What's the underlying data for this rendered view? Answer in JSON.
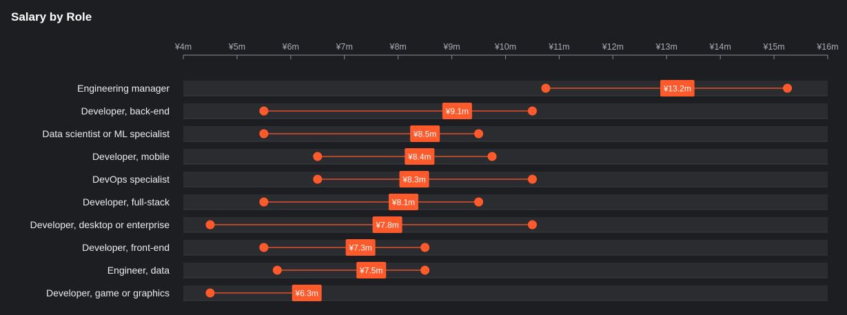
{
  "page": {
    "title": "Salary by Role"
  },
  "colors": {
    "background": "#1c1e21",
    "row_band": "#2a2c2f",
    "axis": "#8a8e94",
    "accent": "#ff5a2b",
    "text": "#ececec"
  },
  "chart_data": {
    "type": "range-dot",
    "title": "Salary by Role",
    "xlabel": "",
    "ylabel": "",
    "xlim": [
      4,
      16
    ],
    "x_ticks": [
      4,
      5,
      6,
      7,
      8,
      9,
      10,
      11,
      12,
      13,
      14,
      15,
      16
    ],
    "tick_labels": [
      "¥4m",
      "¥5m",
      "¥6m",
      "¥7m",
      "¥8m",
      "¥9m",
      "¥10m",
      "¥11m",
      "¥12m",
      "¥13m",
      "¥14m",
      "¥15m",
      "¥16m"
    ],
    "rows": [
      {
        "role": "Engineering manager",
        "min": 10.75,
        "max": 15.25,
        "median": 13.2,
        "median_label": "¥13.2m"
      },
      {
        "role": "Developer, back-end",
        "min": 5.5,
        "max": 10.5,
        "median": 9.1,
        "median_label": "¥9.1m"
      },
      {
        "role": "Data scientist or ML specialist",
        "min": 5.5,
        "max": 9.5,
        "median": 8.5,
        "median_label": "¥8.5m"
      },
      {
        "role": "Developer, mobile",
        "min": 6.5,
        "max": 9.75,
        "median": 8.4,
        "median_label": "¥8.4m"
      },
      {
        "role": "DevOps specialist",
        "min": 6.5,
        "max": 10.5,
        "median": 8.3,
        "median_label": "¥8.3m"
      },
      {
        "role": "Developer, full-stack",
        "min": 5.5,
        "max": 9.5,
        "median": 8.1,
        "median_label": "¥8.1m"
      },
      {
        "role": "Developer, desktop or enterprise",
        "min": 4.5,
        "max": 10.5,
        "median": 7.8,
        "median_label": "¥7.8m"
      },
      {
        "role": "Developer, front-end",
        "min": 5.5,
        "max": 8.5,
        "median": 7.3,
        "median_label": "¥7.3m"
      },
      {
        "role": "Engineer, data",
        "min": 5.75,
        "max": 8.5,
        "median": 7.5,
        "median_label": "¥7.5m"
      },
      {
        "role": "Developer, game or graphics",
        "min": 4.5,
        "max": null,
        "median": 6.3,
        "median_label": "¥6.3m"
      }
    ]
  }
}
